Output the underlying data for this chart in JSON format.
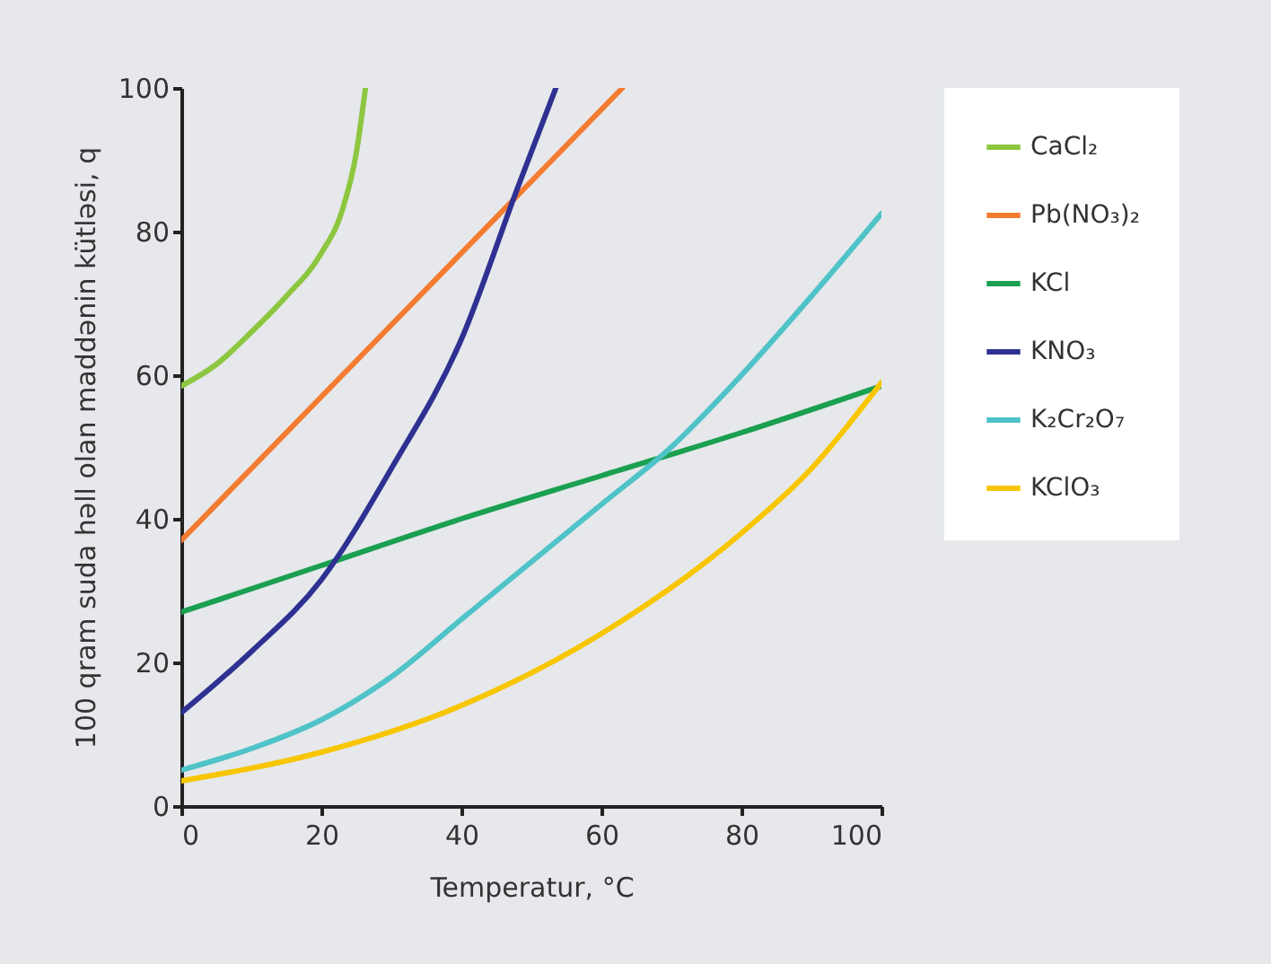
{
  "chart_data": {
    "type": "line",
    "xlabel": "Temperatur, °C",
    "ylabel": "100 qram suda həll olan maddənin kütləsi, q",
    "xlim": [
      0,
      100
    ],
    "xticks": [
      0,
      20,
      40,
      60,
      80,
      100
    ],
    "ylim": [
      0,
      100
    ],
    "yticks": [
      0,
      20,
      40,
      60,
      80,
      100
    ],
    "grid": false,
    "legend": "right",
    "marker": "none",
    "line_style": "solid",
    "series": [
      {
        "name": "CaCl₂",
        "color": "#8dc63f",
        "x": [
          0,
          5,
          10,
          15,
          20,
          23,
          25,
          26.3
        ],
        "values": [
          58.5,
          61.5,
          66,
          71,
          77,
          83,
          91,
          100
        ]
      },
      {
        "name": "Pb(NO₃)₂",
        "color": "#f47b30",
        "x": [
          0,
          20,
          40,
          63
        ],
        "values": [
          37,
          57,
          77,
          100
        ]
      },
      {
        "name": "KCl",
        "color": "#1aa050",
        "x": [
          0,
          20,
          40,
          60,
          80,
          100
        ],
        "values": [
          27,
          33.5,
          40,
          46,
          52,
          58.5
        ]
      },
      {
        "name": "KNO₃",
        "color": "#2e3192",
        "x": [
          0,
          10,
          20,
          30,
          40,
          48,
          53.5
        ],
        "values": [
          13,
          21.5,
          31.5,
          47,
          65,
          86,
          100
        ]
      },
      {
        "name": "K₂Cr₂O₇",
        "color": "#4fc3c8",
        "x": [
          0,
          10,
          20,
          30,
          40,
          50,
          60,
          70,
          80,
          90,
          100
        ],
        "values": [
          5,
          8,
          12,
          18,
          26,
          34,
          42,
          50,
          60,
          71,
          82.5
        ]
      },
      {
        "name": "KClO₃",
        "color": "#f7c600",
        "x": [
          0,
          20,
          40,
          60,
          80,
          90,
          100
        ],
        "values": [
          3.5,
          7.5,
          14,
          24,
          38,
          47,
          59
        ]
      }
    ]
  }
}
